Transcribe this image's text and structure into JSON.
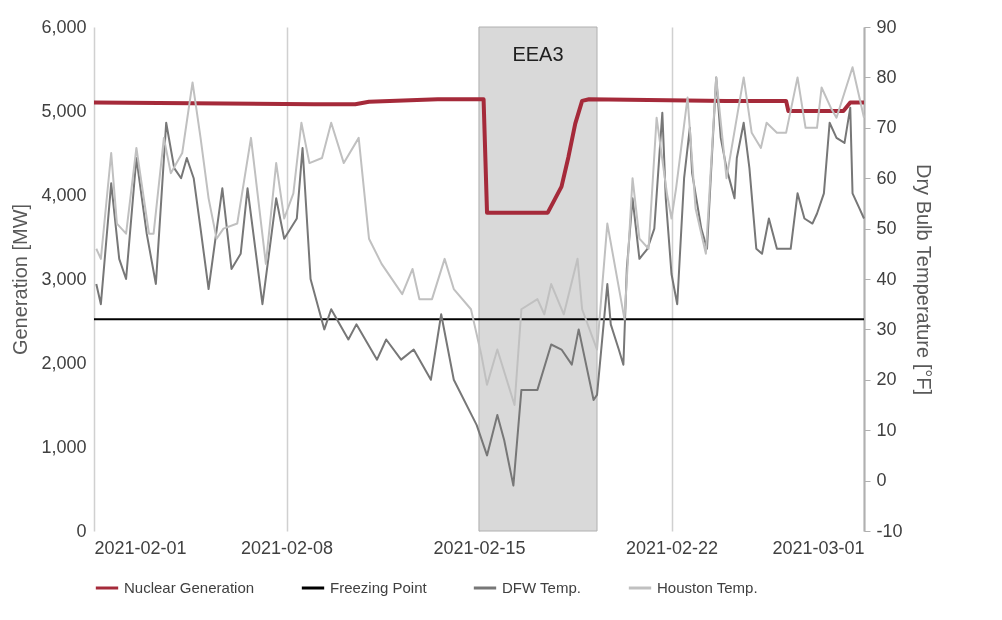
{
  "chart_data": {
    "type": "line",
    "ylabel": "Generation [MW]",
    "y2label": "Dry Bulb Temperature [°F]",
    "xlim": [
      "2021-02-01",
      "2021-03-01"
    ],
    "xticks": [
      "2021-02-01",
      "2021-02-08",
      "2021-02-15",
      "2021-02-22",
      "2021-03-01"
    ],
    "ylim": [
      0,
      6000
    ],
    "yticks": [
      0,
      {
        "value": 1000,
        "label": "1,000"
      },
      {
        "value": 2000,
        "label": "2,000"
      },
      {
        "value": 3000,
        "label": "3,000"
      },
      {
        "value": 4000,
        "label": "4,000"
      },
      {
        "value": 5000,
        "label": "5,000"
      },
      {
        "value": 6000,
        "label": "6,000"
      }
    ],
    "y2lim": [
      -10,
      90
    ],
    "y2ticks": [
      -10,
      0,
      10,
      20,
      30,
      40,
      50,
      60,
      70,
      80,
      90
    ],
    "grid": "x",
    "legend": "bottom",
    "bands": [
      {
        "axis": "x",
        "from": "2021-02-15",
        "to": "2021-02-19T07:00",
        "label": "EEA3",
        "color": "#d9d9d9"
      }
    ],
    "series": [
      {
        "name": "Nuclear Generation",
        "color": "#a52a3a",
        "x": [
          "2021-02-01",
          "2021-02-09",
          "2021-02-10T12:00",
          "2021-02-11",
          "2021-02-13T12:00",
          "2021-02-15T04:00",
          "2021-02-15T07:00",
          "2021-02-17T12:00",
          "2021-02-18",
          "2021-02-18T06:00",
          "2021-02-18T12:00",
          "2021-02-18T18:00",
          "2021-02-19",
          "2021-02-24",
          "2021-02-26T04:00",
          "2021-02-26T06:00",
          "2021-02-28T06:00",
          "2021-02-28T12:00",
          "2021-03-01"
        ],
        "values": [
          5100,
          5080,
          5080,
          5110,
          5140,
          5140,
          3790,
          3790,
          4100,
          4450,
          4850,
          5120,
          5140,
          5120,
          5120,
          5000,
          5000,
          5100,
          5100
        ]
      },
      {
        "name": "Freezing Point",
        "color": "#000000",
        "axis": "y2",
        "x": [
          "2021-02-01",
          "2021-03-01"
        ],
        "values": [
          32,
          32
        ]
      },
      {
        "name": "DFW Temp.",
        "color": "#777777",
        "axis": "y2",
        "x": [
          "2021-02-01T02:00",
          "2021-02-01T06:00",
          "2021-02-01T15:00",
          "2021-02-01T22:00",
          "2021-02-02T04:00",
          "2021-02-02T13:00",
          "2021-02-02T22:00",
          "2021-02-03T06:00",
          "2021-02-03T15:00",
          "2021-02-03T22:00",
          "2021-02-04T04:00",
          "2021-02-04T09:00",
          "2021-02-04T15:00",
          "2021-02-04T21:00",
          "2021-02-05T04:00",
          "2021-02-05T16:00",
          "2021-02-06T00:00",
          "2021-02-06T08:00",
          "2021-02-06T14:00",
          "2021-02-07T03:00",
          "2021-02-07T15:00",
          "2021-02-07T22:00",
          "2021-02-08T09:00",
          "2021-02-08T14:00",
          "2021-02-08T21:00",
          "2021-02-09T09:00",
          "2021-02-09T15:00",
          "2021-02-10T06:00",
          "2021-02-10T13:00",
          "2021-02-11T07:00",
          "2021-02-11T15:00",
          "2021-02-12T04:00",
          "2021-02-12T15:00",
          "2021-02-13T06:00",
          "2021-02-13T15:00",
          "2021-02-14T02:00",
          "2021-02-14T22:00",
          "2021-02-15T07:00",
          "2021-02-15T16:00",
          "2021-02-15T22:00",
          "2021-02-16T06:00",
          "2021-02-16T13:00",
          "2021-02-17T03:00",
          "2021-02-17T15:00",
          "2021-02-18T00:00",
          "2021-02-18T09:00",
          "2021-02-18T15:00",
          "2021-02-19T04:00",
          "2021-02-19T07:00",
          "2021-02-19T16:00",
          "2021-02-19T19:00",
          "2021-02-20T02:00",
          "2021-02-20T06:00",
          "2021-02-20T09:00",
          "2021-02-20T14:00",
          "2021-02-20T20:00",
          "2021-02-21T03:00",
          "2021-02-21T09:00",
          "2021-02-21T16:00",
          "2021-02-21T19:00",
          "2021-02-22T00:00",
          "2021-02-22T05:00",
          "2021-02-22T11:00",
          "2021-02-22T16:00",
          "2021-02-22T18:00",
          "2021-02-23T02:00",
          "2021-02-23T07:00",
          "2021-02-23T10:00",
          "2021-02-23T15:00",
          "2021-02-23T19:00",
          "2021-02-24T00:00",
          "2021-02-24T07:00",
          "2021-02-24T09:00",
          "2021-02-24T15:00",
          "2021-02-24T20:00",
          "2021-02-25T02:00",
          "2021-02-25T07:00",
          "2021-02-25T13:00",
          "2021-02-25T20:00",
          "2021-02-26T08:00",
          "2021-02-26T14:00",
          "2021-02-26T20:00",
          "2021-02-27T03:00",
          "2021-02-27T07:00",
          "2021-02-27T13:00",
          "2021-02-27T18:00",
          "2021-02-28T00:00",
          "2021-02-28T07:00",
          "2021-02-28T12:00",
          "2021-02-28T14:00",
          "2021-02-28T20:00",
          "2021-03-01T00:00"
        ],
        "values": [
          39,
          35,
          59,
          44,
          40,
          64,
          49,
          39,
          71,
          62,
          60,
          64,
          60,
          50,
          38,
          58,
          42,
          45,
          58,
          35,
          56,
          48,
          52,
          66,
          40,
          30,
          34,
          28,
          31,
          24,
          28,
          24,
          26,
          20,
          33,
          20,
          11,
          5,
          13,
          8,
          -1,
          18,
          18,
          27,
          26,
          23,
          30,
          16,
          17,
          39,
          31,
          26,
          23,
          42,
          56,
          44,
          46,
          50,
          73,
          56,
          41,
          35,
          60,
          70,
          61,
          50,
          46,
          59,
          80,
          68,
          62,
          56,
          64,
          71,
          62,
          46,
          45,
          52,
          46,
          46,
          57,
          52,
          51,
          53,
          57,
          71,
          68,
          67,
          74,
          57,
          54,
          52
        ]
      },
      {
        "name": "Houston Temp.",
        "color": "#c0c0c0",
        "axis": "y2",
        "x": [
          "2021-02-01T02:00",
          "2021-02-01T06:00",
          "2021-02-01T15:00",
          "2021-02-01T20:00",
          "2021-02-02T04:00",
          "2021-02-02T13:00",
          "2021-02-03T00:00",
          "2021-02-03T04:00",
          "2021-02-03T13:00",
          "2021-02-03T19:00",
          "2021-02-04T05:00",
          "2021-02-04T14:00",
          "2021-02-04T21:00",
          "2021-02-05T04:00",
          "2021-02-05T11:00",
          "2021-02-05T17:00",
          "2021-02-06T05:00",
          "2021-02-06T17:00",
          "2021-02-07T06:00",
          "2021-02-07T15:00",
          "2021-02-07T22:00",
          "2021-02-08T06:00",
          "2021-02-08T13:00",
          "2021-02-08T20:00",
          "2021-02-09T07:00",
          "2021-02-09T15:00",
          "2021-02-10T02:00",
          "2021-02-10T15:00",
          "2021-02-11T00:00",
          "2021-02-11T11:00",
          "2021-02-12T05:00",
          "2021-02-12T14:00",
          "2021-02-12T20:00",
          "2021-02-13T07:00",
          "2021-02-13T18:00",
          "2021-02-14T02:00",
          "2021-02-14T17:00",
          "2021-02-15T02:00",
          "2021-02-15T07:00",
          "2021-02-15T16:00",
          "2021-02-16T07:00",
          "2021-02-16T13:00",
          "2021-02-17T03:00",
          "2021-02-17T09:00",
          "2021-02-17T15:00",
          "2021-02-18T02:00",
          "2021-02-18T14:00",
          "2021-02-18T18:00",
          "2021-02-19T07:00",
          "2021-02-19T16:00",
          "2021-02-20T07:00",
          "2021-02-20T14:00",
          "2021-02-20T20:00",
          "2021-02-21T04:00",
          "2021-02-21T11:00",
          "2021-02-21T20:00",
          "2021-02-22T00:00",
          "2021-02-22T04:00",
          "2021-02-22T14:00",
          "2021-02-22T21:00",
          "2021-02-23T06:00",
          "2021-02-23T15:00",
          "2021-02-24T00:00",
          "2021-02-24T15:00",
          "2021-02-24T22:00",
          "2021-02-25T06:00",
          "2021-02-25T11:00",
          "2021-02-25T20:00",
          "2021-02-26T04:00",
          "2021-02-26T14:00",
          "2021-02-26T21:00",
          "2021-02-27T07:00",
          "2021-02-27T11:00",
          "2021-02-27T19:00",
          "2021-02-28T00:00",
          "2021-02-28T14:00",
          "2021-03-01T00:00"
        ],
        "values": [
          46,
          44,
          65,
          51,
          49,
          66,
          49,
          49,
          68,
          61,
          65,
          79,
          68,
          56,
          48,
          50,
          51,
          68,
          43,
          63,
          52,
          57,
          71,
          63,
          64,
          71,
          63,
          68,
          48,
          43,
          37,
          42,
          36,
          36,
          44,
          38,
          34,
          25,
          19,
          26,
          15,
          34,
          36,
          33,
          39,
          33,
          44,
          34,
          26,
          51,
          32,
          60,
          48,
          46,
          72,
          57,
          52,
          58,
          76,
          54,
          45,
          80,
          60,
          80,
          69,
          66,
          71,
          69,
          69,
          80,
          70,
          70,
          78,
          74,
          72,
          82,
          72
        ]
      }
    ]
  }
}
